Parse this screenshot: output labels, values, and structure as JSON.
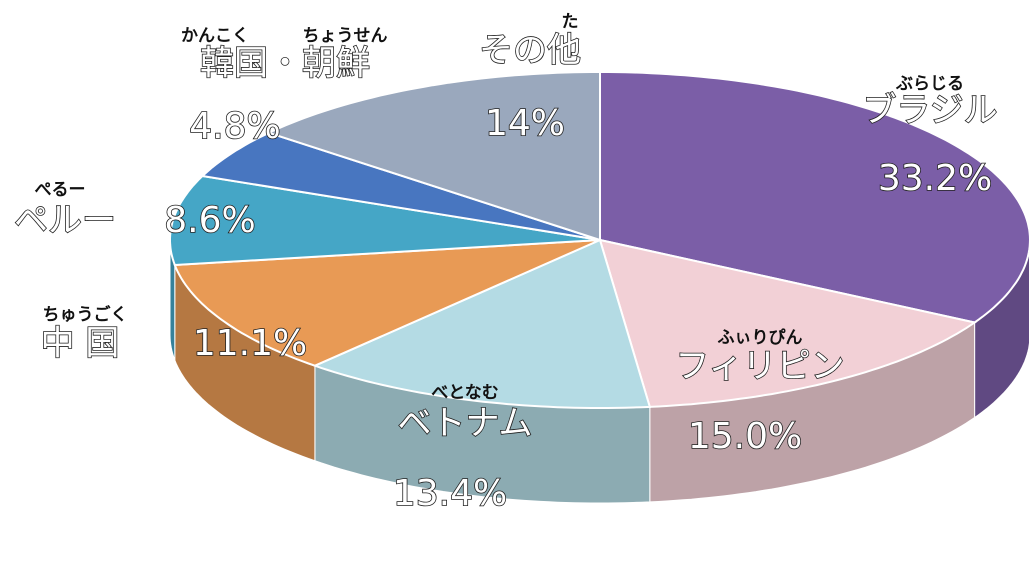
{
  "chart_data": {
    "type": "pie3d",
    "categories": [
      "ブラジル",
      "フィリピン",
      "ベトナム",
      "中 国",
      "ペルー",
      "韓国・朝鮮",
      "その他"
    ],
    "furigana": [
      [
        "ぶらじる"
      ],
      [
        "ふぃりぴん"
      ],
      [
        "べとなむ"
      ],
      [
        "ちゅうごく"
      ],
      [
        "ぺるー"
      ],
      [
        "かんこく",
        "ちょうせん"
      ],
      [
        "た"
      ]
    ],
    "values": [
      33.2,
      15.0,
      13.4,
      11.1,
      8.6,
      4.8,
      14
    ],
    "value_labels": [
      "33.2%",
      "15.0%",
      "13.4%",
      "11.1%",
      "8.6%",
      "4.8%",
      "14%"
    ],
    "colors": [
      "#7b5ea7",
      "#f2d0d6",
      "#b4dbe4",
      "#e89a55",
      "#45a6c6",
      "#4876c0",
      "#9aa8bd"
    ]
  }
}
